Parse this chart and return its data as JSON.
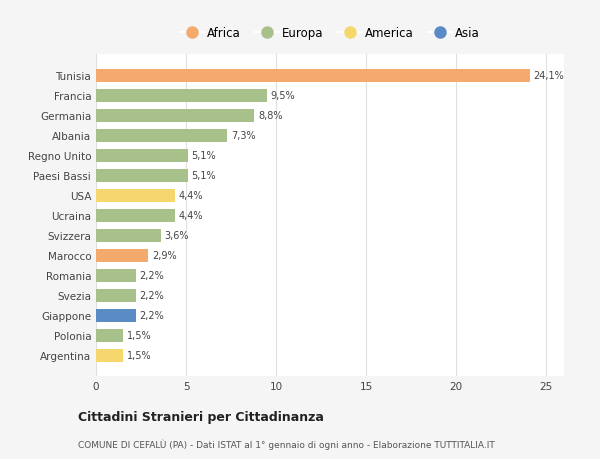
{
  "countries": [
    "Tunisia",
    "Francia",
    "Germania",
    "Albania",
    "Regno Unito",
    "Paesi Bassi",
    "USA",
    "Ucraina",
    "Svizzera",
    "Marocco",
    "Romania",
    "Svezia",
    "Giappone",
    "Polonia",
    "Argentina"
  ],
  "values": [
    24.1,
    9.5,
    8.8,
    7.3,
    5.1,
    5.1,
    4.4,
    4.4,
    3.6,
    2.9,
    2.2,
    2.2,
    2.2,
    1.5,
    1.5
  ],
  "labels": [
    "24,1%",
    "9,5%",
    "8,8%",
    "7,3%",
    "5,1%",
    "5,1%",
    "4,4%",
    "4,4%",
    "3,6%",
    "2,9%",
    "2,2%",
    "2,2%",
    "2,2%",
    "1,5%",
    "1,5%"
  ],
  "continent": [
    "Africa",
    "Europa",
    "Europa",
    "Europa",
    "Europa",
    "Europa",
    "America",
    "Europa",
    "Europa",
    "Africa",
    "Europa",
    "Europa",
    "Asia",
    "Europa",
    "America"
  ],
  "colors": {
    "Africa": "#F4A96D",
    "Europa": "#A8C08A",
    "America": "#F5D76E",
    "Asia": "#5B8BC5"
  },
  "legend_order": [
    "Africa",
    "Europa",
    "America",
    "Asia"
  ],
  "title": "Cittadini Stranieri per Cittadinanza",
  "subtitle": "COMUNE DI CEFALÙ (PA) - Dati ISTAT al 1° gennaio di ogni anno - Elaborazione TUTTITALIA.IT",
  "xlim": [
    0,
    26
  ],
  "xticks": [
    0,
    5,
    10,
    15,
    20,
    25
  ],
  "background_color": "#f5f5f5",
  "plot_bg_color": "#ffffff",
  "grid_color": "#e0e0e0"
}
